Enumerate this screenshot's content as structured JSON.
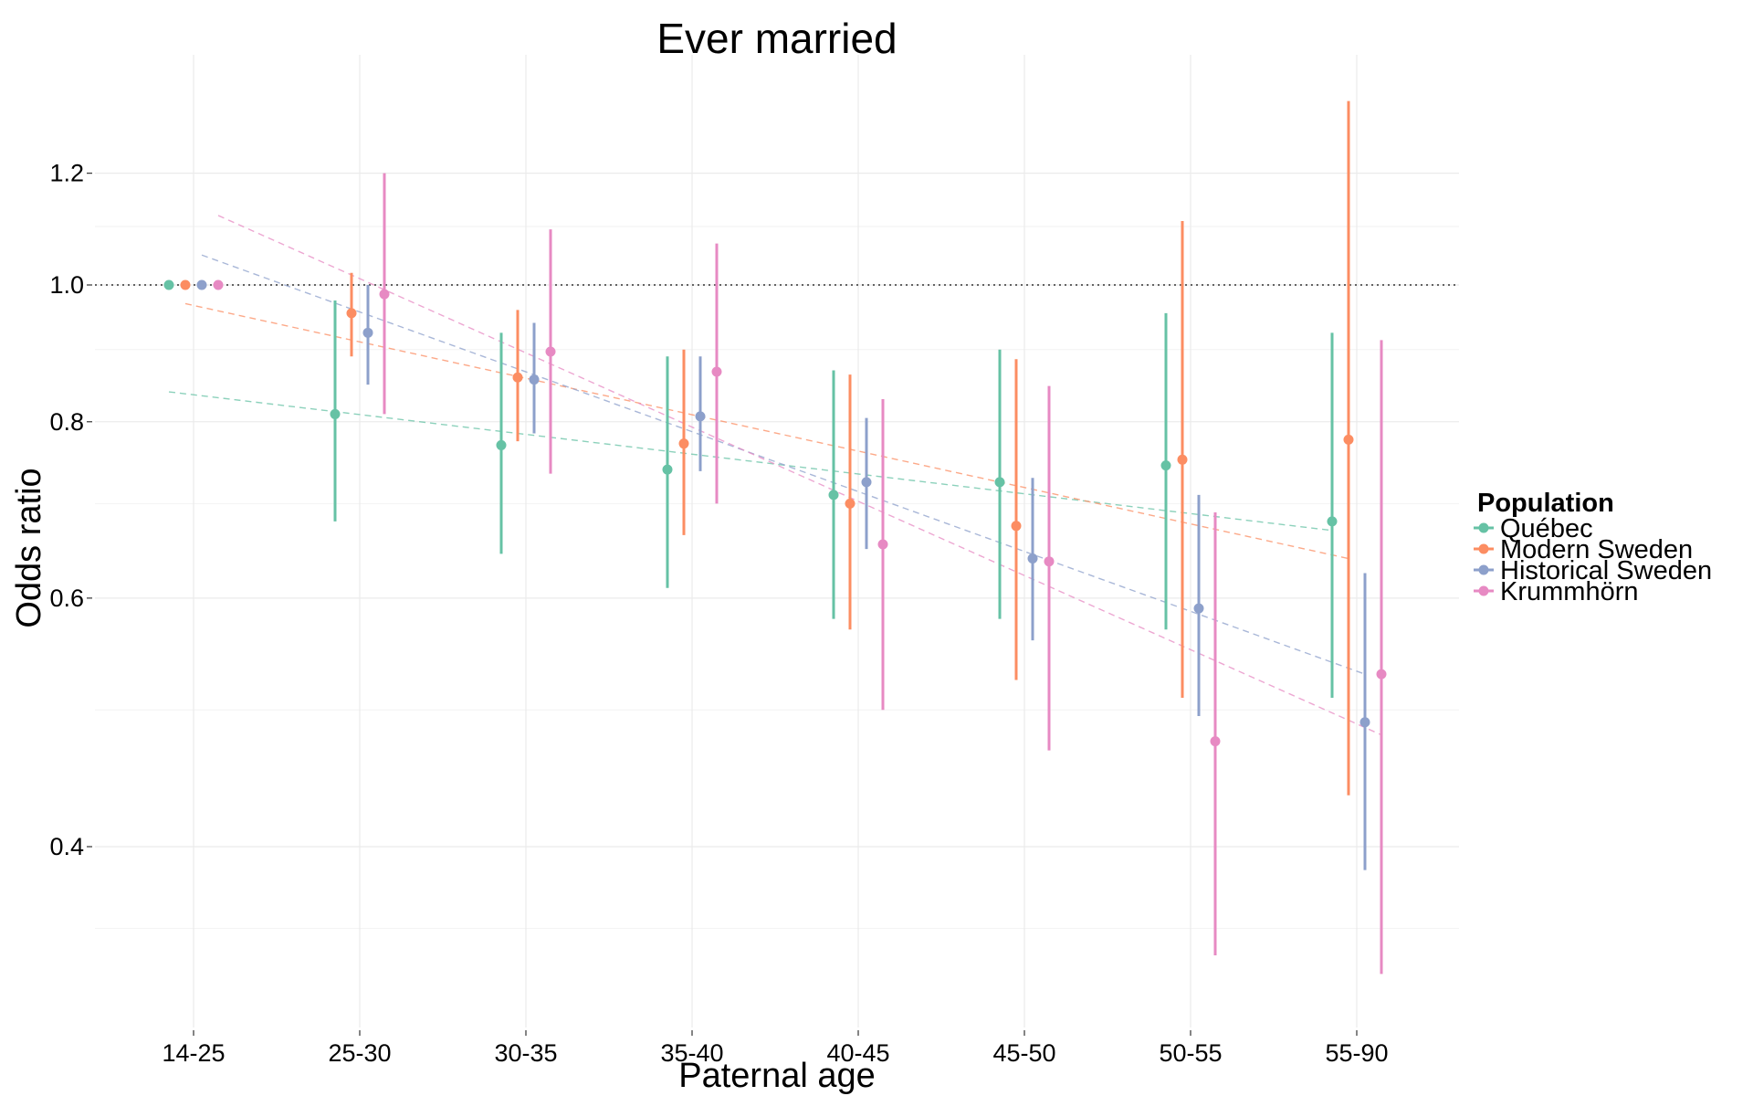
{
  "chart_data": {
    "type": "scatter",
    "title": "Ever married",
    "xlabel": "Paternal age",
    "ylabel": "Odds ratio",
    "categories": [
      "14-25",
      "25-30",
      "30-35",
      "35-40",
      "40-45",
      "45-50",
      "50-55",
      "55-90"
    ],
    "y_scale": "log",
    "ylim": [
      0.3,
      1.4
    ],
    "yticks": [
      0.4,
      0.6,
      0.8,
      1.0,
      1.2
    ],
    "ytick_labels": [
      "0.4",
      "0.6",
      "0.8",
      "1.0",
      "1.2"
    ],
    "minor_gridlines": [
      0.35,
      0.5,
      0.7,
      0.9,
      1.1
    ],
    "reference_line": 1.0,
    "grid": true,
    "legend": {
      "title": "Population",
      "position": "right"
    },
    "series": [
      {
        "name": "Québec",
        "color": "#66C2A5",
        "values": [
          1.0,
          0.81,
          0.77,
          0.74,
          0.71,
          0.725,
          0.745,
          0.68
        ],
        "lower": [
          1.0,
          0.68,
          0.645,
          0.61,
          0.58,
          0.58,
          0.57,
          0.51
        ],
        "upper": [
          1.0,
          0.975,
          0.925,
          0.89,
          0.87,
          0.9,
          0.955,
          0.925
        ],
        "trend": [
          0.84,
          0.67
        ]
      },
      {
        "name": "Modern Sweden",
        "color": "#FC8D62",
        "values": [
          1.0,
          0.955,
          0.86,
          0.772,
          0.7,
          0.675,
          0.752,
          0.777
        ],
        "lower": [
          1.0,
          0.89,
          0.775,
          0.665,
          0.57,
          0.525,
          0.51,
          0.435
        ],
        "upper": [
          1.0,
          1.02,
          0.96,
          0.9,
          0.864,
          0.886,
          1.11,
          1.35
        ],
        "trend": [
          0.97,
          0.64
        ]
      },
      {
        "name": "Historical Sweden",
        "color": "#8DA0CB",
        "values": [
          1.0,
          0.925,
          0.857,
          0.807,
          0.725,
          0.64,
          0.59,
          0.49
        ],
        "lower": [
          1.0,
          0.85,
          0.785,
          0.738,
          0.65,
          0.56,
          0.495,
          0.385
        ],
        "upper": [
          1.0,
          1.0,
          0.94,
          0.89,
          0.805,
          0.73,
          0.71,
          0.625
        ],
        "trend": [
          1.05,
          0.53
        ]
      },
      {
        "name": "Krummhörn",
        "color": "#E78AC3",
        "values": [
          1.0,
          0.985,
          0.897,
          0.868,
          0.655,
          0.637,
          0.475,
          0.53
        ],
        "lower": [
          1.0,
          0.81,
          0.735,
          0.7,
          0.5,
          0.468,
          0.335,
          0.325
        ],
        "upper": [
          1.0,
          1.2,
          1.095,
          1.07,
          0.83,
          0.848,
          0.69,
          0.914
        ],
        "trend": [
          1.12,
          0.48
        ]
      }
    ]
  }
}
